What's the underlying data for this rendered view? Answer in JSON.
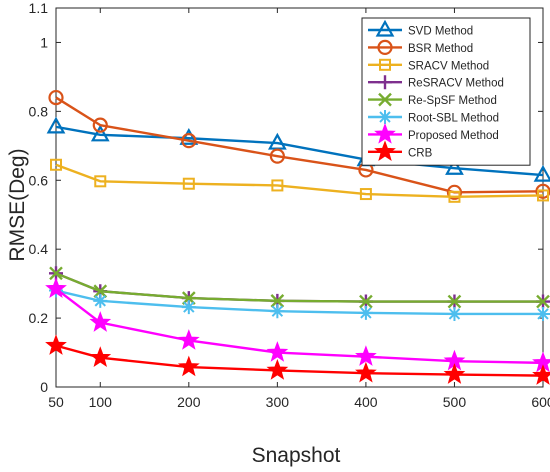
{
  "chart_data": {
    "type": "line",
    "title": "",
    "xlabel": "Snapshot",
    "ylabel": "RMSE(Deg)",
    "x": [
      50,
      100,
      200,
      300,
      400,
      500,
      600
    ],
    "xlim": [
      50,
      600
    ],
    "ylim": [
      0,
      1.1
    ],
    "xticks": [
      "50",
      "100",
      "200",
      "300",
      "400",
      "500",
      "600"
    ],
    "yticks": [
      "0",
      "0.2",
      "0.4",
      "0.6",
      "0.8",
      "1",
      "1.1"
    ],
    "grid": false,
    "legend_position": "top-right",
    "series": [
      {
        "name": "SVD Method",
        "color": "#0072BD",
        "marker": "triangle",
        "values": [
          0.755,
          0.732,
          0.722,
          0.708,
          0.66,
          0.635,
          0.615
        ]
      },
      {
        "name": "BSR Method",
        "color": "#D95319",
        "marker": "circle",
        "values": [
          0.84,
          0.76,
          0.715,
          0.67,
          0.63,
          0.565,
          0.568
        ]
      },
      {
        "name": "SRACV Method",
        "color": "#EDB120",
        "marker": "square",
        "values": [
          0.645,
          0.597,
          0.59,
          0.585,
          0.56,
          0.552,
          0.556
        ]
      },
      {
        "name": "ReSRACV Method",
        "color": "#7E2F8E",
        "marker": "plus",
        "values": [
          0.33,
          0.278,
          0.258,
          0.25,
          0.248,
          0.248,
          0.248
        ]
      },
      {
        "name": "Re-SpSF Method",
        "color": "#77AC30",
        "marker": "cross",
        "values": [
          0.33,
          0.278,
          0.258,
          0.25,
          0.248,
          0.248,
          0.248
        ]
      },
      {
        "name": "Root-SBL Method",
        "color": "#4DBEEE",
        "marker": "asterisk",
        "values": [
          0.28,
          0.25,
          0.232,
          0.22,
          0.215,
          0.212,
          0.212
        ]
      },
      {
        "name": "Proposed Method",
        "color": "#FF00FF",
        "marker": "pentagram",
        "values": [
          0.285,
          0.187,
          0.135,
          0.1,
          0.088,
          0.075,
          0.07
        ]
      },
      {
        "name": "CRB",
        "color": "#FF0000",
        "marker": "pentagram",
        "values": [
          0.12,
          0.085,
          0.058,
          0.048,
          0.04,
          0.036,
          0.033
        ]
      }
    ]
  }
}
